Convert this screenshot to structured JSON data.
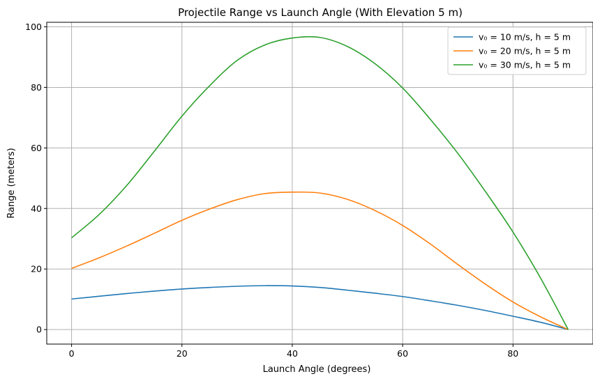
{
  "chart_data": {
    "type": "line",
    "title": "Projectile Range vs Launch Angle (With Elevation 5 m)",
    "xlabel": "Launch Angle (degrees)",
    "ylabel": "Range (meters)",
    "xlim": [
      -4.5,
      94.5
    ],
    "ylim": [
      -4.8,
      101.5
    ],
    "xticks": [
      0,
      20,
      40,
      60,
      80
    ],
    "yticks": [
      0,
      20,
      40,
      60,
      80,
      100
    ],
    "xtick_labels": [
      "0",
      "20",
      "40",
      "60",
      "80"
    ],
    "ytick_labels": [
      "0",
      "20",
      "40",
      "60",
      "80",
      "100"
    ],
    "grid": true,
    "legend_position": "top-right",
    "x": [
      0,
      5,
      10,
      15,
      20,
      25,
      30,
      35,
      40,
      45,
      50,
      55,
      60,
      65,
      70,
      75,
      80,
      85,
      90
    ],
    "series": [
      {
        "name": "v₀ = 10 m/s, h = 5 m",
        "color": "#1f77b4",
        "values": [
          10.1,
          11.0,
          11.9,
          12.7,
          13.4,
          13.9,
          14.3,
          14.5,
          14.4,
          13.9,
          13.0,
          12.0,
          10.9,
          9.5,
          8.0,
          6.3,
          4.4,
          2.4,
          0.0
        ]
      },
      {
        "name": "v₀ = 20 m/s, h = 5 m",
        "color": "#ff7f0e",
        "values": [
          20.2,
          23.7,
          27.6,
          31.8,
          36.1,
          39.8,
          42.9,
          44.9,
          45.4,
          45.1,
          43.0,
          39.3,
          34.4,
          28.3,
          21.5,
          15.0,
          9.1,
          4.2,
          0.0
        ]
      },
      {
        "name": "v₀ = 30 m/s, h = 5 m",
        "color": "#2ca02c",
        "values": [
          30.3,
          38.0,
          47.6,
          58.9,
          70.5,
          80.5,
          88.9,
          94.0,
          96.3,
          96.5,
          93.5,
          87.8,
          79.8,
          69.5,
          58.2,
          45.6,
          32.2,
          17.0,
          0.0
        ]
      }
    ]
  }
}
